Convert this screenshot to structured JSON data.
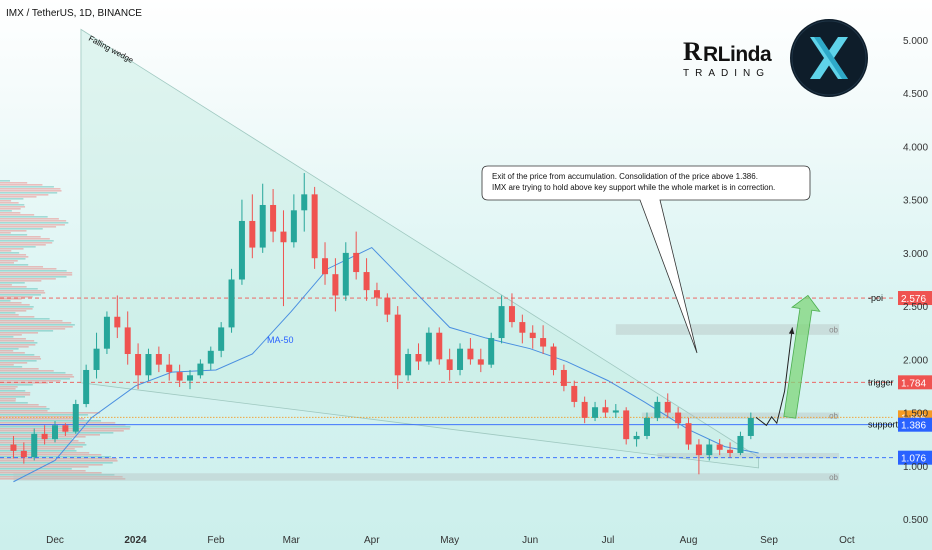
{
  "header": {
    "title": "IMX / TetherUS, 1D, BINANCE"
  },
  "brand": {
    "logo_text": "RLinda",
    "logo_subtext": "TRADING",
    "token_icon": "imx-x-logo-icon"
  },
  "colors": {
    "up": "#26a69a",
    "down": "#ef5350",
    "poi": "#ef5350",
    "trigger": "#ef5350",
    "current": "#f59a23",
    "support": "#2962ff",
    "low": "#2962ff",
    "ma": "#4a8fe0",
    "arrow": "#7fd67a"
  },
  "annotation": {
    "line1": "Exit of the price from accumulation. Consolidation of the price above 1.386.",
    "line2": "IMX are trying to hold above key support while the whole market is in correction."
  },
  "chart_data": {
    "type": "candlestick",
    "ylim": [
      0.45,
      5.15
    ],
    "y_ticks": [
      {
        "value": 5.0,
        "label": "5.000"
      },
      {
        "value": 4.5,
        "label": "4.500"
      },
      {
        "value": 4.0,
        "label": "4.000"
      },
      {
        "value": 3.5,
        "label": "3.500"
      },
      {
        "value": 3.0,
        "label": "3.000"
      },
      {
        "value": 2.5,
        "label": "2.500"
      },
      {
        "value": 2.0,
        "label": "2.000"
      },
      {
        "value": 1.5,
        "label": "1.500"
      },
      {
        "value": 1.0,
        "label": "1.000"
      },
      {
        "value": 0.5,
        "label": "0.500"
      }
    ],
    "x_ticks": [
      {
        "date": "2023-12-01",
        "label": "Dec",
        "bold": false
      },
      {
        "date": "2024-01-01",
        "label": "2024",
        "bold": true
      },
      {
        "date": "2024-02-01",
        "label": "Feb",
        "bold": false
      },
      {
        "date": "2024-03-01",
        "label": "Mar",
        "bold": false
      },
      {
        "date": "2024-04-01",
        "label": "Apr",
        "bold": false
      },
      {
        "date": "2024-05-01",
        "label": "May",
        "bold": false
      },
      {
        "date": "2024-06-01",
        "label": "Jun",
        "bold": false
      },
      {
        "date": "2024-07-01",
        "label": "Jul",
        "bold": false
      },
      {
        "date": "2024-08-01",
        "label": "Aug",
        "bold": false
      },
      {
        "date": "2024-09-01",
        "label": "Sep",
        "bold": false
      },
      {
        "date": "2024-10-01",
        "label": "Oct",
        "bold": false
      }
    ],
    "price_levels": [
      {
        "name": "poi",
        "value": 2.576,
        "label": "2.576",
        "side_label": "-poi",
        "color": "#ef5350",
        "style": "dashed"
      },
      {
        "name": "trigger",
        "value": 1.784,
        "label": "1.784",
        "side_label": "trigger",
        "color": "#ef5350",
        "style": "dashed"
      },
      {
        "name": "current",
        "value": 1.455,
        "label": "1.455",
        "side_label": "",
        "color": "#f59a23",
        "style": "dotted"
      },
      {
        "name": "support",
        "value": 1.386,
        "label": "1.386",
        "side_label": "support",
        "color": "#2962ff",
        "style": "solid"
      },
      {
        "name": "low",
        "value": 1.076,
        "label": "1.076",
        "side_label": "",
        "color": "#2962ff",
        "style": "dashed"
      }
    ],
    "zones": [
      {
        "name": "ob-upper",
        "start": "2024-07-04",
        "end": "2024-09-28",
        "low": 2.23,
        "high": 2.33,
        "label": "ob"
      },
      {
        "name": "ob-middle",
        "start": "2024-07-14",
        "end": "2024-09-28",
        "low": 1.44,
        "high": 1.5,
        "label": "ob"
      },
      {
        "name": "ob-lower-band",
        "start": "2024-07-20",
        "end": "2024-09-28",
        "low": 1.07,
        "high": 1.12,
        "label": ""
      },
      {
        "name": "ob-bottom",
        "start": "2023-11-15",
        "end": "2024-09-28",
        "low": 0.86,
        "high": 0.93,
        "label": "ob"
      }
    ],
    "wedge": {
      "label": "Falling wedge",
      "points": [
        {
          "date": "2023-12-11",
          "value": 5.1
        },
        {
          "date": "2024-08-28",
          "value": 1.08
        },
        {
          "date": "2024-08-28",
          "value": 0.98
        },
        {
          "date": "2023-12-11",
          "value": 1.78
        }
      ]
    },
    "ma": {
      "label": "MA-50",
      "x": [
        "2023-11-15",
        "2023-12-01",
        "2023-12-15",
        "2024-01-01",
        "2024-01-15",
        "2024-02-01",
        "2024-02-15",
        "2024-03-01",
        "2024-03-15",
        "2024-04-01",
        "2024-04-15",
        "2024-05-01",
        "2024-05-15",
        "2024-06-01",
        "2024-06-15",
        "2024-07-01",
        "2024-07-15",
        "2024-08-01",
        "2024-08-15",
        "2024-08-28"
      ],
      "y": [
        0.85,
        1.05,
        1.45,
        1.75,
        1.88,
        1.9,
        2.05,
        2.45,
        2.85,
        3.05,
        2.7,
        2.3,
        2.2,
        2.1,
        1.98,
        1.8,
        1.6,
        1.34,
        1.18,
        1.12
      ]
    },
    "projection": {
      "x": [
        "2024-08-27",
        "2024-08-31",
        "2024-09-02",
        "2024-09-04",
        "2024-09-07",
        "2024-09-10"
      ],
      "y": [
        1.455,
        1.38,
        1.46,
        1.4,
        1.7,
        2.3
      ]
    },
    "arrow_target": {
      "start_date": "2024-09-09",
      "start_value": 1.455,
      "end_date": "2024-09-16",
      "end_value": 2.6
    },
    "series": [
      {
        "date": "2023-11-15",
        "open": 1.2,
        "high": 1.28,
        "low": 1.07,
        "close": 1.14
      },
      {
        "date": "2023-11-19",
        "open": 1.14,
        "high": 1.22,
        "low": 1.02,
        "close": 1.08
      },
      {
        "date": "2023-11-23",
        "open": 1.08,
        "high": 1.35,
        "low": 1.05,
        "close": 1.3
      },
      {
        "date": "2023-11-27",
        "open": 1.3,
        "high": 1.38,
        "low": 1.2,
        "close": 1.25
      },
      {
        "date": "2023-12-01",
        "open": 1.25,
        "high": 1.42,
        "low": 1.22,
        "close": 1.38
      },
      {
        "date": "2023-12-05",
        "open": 1.38,
        "high": 1.4,
        "low": 1.28,
        "close": 1.32
      },
      {
        "date": "2023-12-09",
        "open": 1.32,
        "high": 1.62,
        "low": 1.3,
        "close": 1.58
      },
      {
        "date": "2023-12-13",
        "open": 1.58,
        "high": 1.95,
        "low": 1.55,
        "close": 1.9
      },
      {
        "date": "2023-12-17",
        "open": 1.9,
        "high": 2.25,
        "low": 1.82,
        "close": 2.1
      },
      {
        "date": "2023-12-21",
        "open": 2.1,
        "high": 2.45,
        "low": 2.05,
        "close": 2.4
      },
      {
        "date": "2023-12-25",
        "open": 2.4,
        "high": 2.6,
        "low": 2.2,
        "close": 2.3
      },
      {
        "date": "2023-12-29",
        "open": 2.3,
        "high": 2.45,
        "low": 1.95,
        "close": 2.05
      },
      {
        "date": "2024-01-02",
        "open": 2.05,
        "high": 2.15,
        "low": 1.72,
        "close": 1.85
      },
      {
        "date": "2024-01-06",
        "open": 1.85,
        "high": 2.1,
        "low": 1.8,
        "close": 2.05
      },
      {
        "date": "2024-01-10",
        "open": 2.05,
        "high": 2.12,
        "low": 1.88,
        "close": 1.95
      },
      {
        "date": "2024-01-14",
        "open": 1.95,
        "high": 2.05,
        "low": 1.8,
        "close": 1.88
      },
      {
        "date": "2024-01-18",
        "open": 1.88,
        "high": 1.95,
        "low": 1.74,
        "close": 1.8
      },
      {
        "date": "2024-01-22",
        "open": 1.8,
        "high": 1.9,
        "low": 1.72,
        "close": 1.85
      },
      {
        "date": "2024-01-26",
        "open": 1.85,
        "high": 2.0,
        "low": 1.82,
        "close": 1.96
      },
      {
        "date": "2024-01-30",
        "open": 1.96,
        "high": 2.12,
        "low": 1.9,
        "close": 2.08
      },
      {
        "date": "2024-02-03",
        "open": 2.08,
        "high": 2.35,
        "low": 2.02,
        "close": 2.3
      },
      {
        "date": "2024-02-07",
        "open": 2.3,
        "high": 2.85,
        "low": 2.25,
        "close": 2.75
      },
      {
        "date": "2024-02-11",
        "open": 2.75,
        "high": 3.5,
        "low": 2.7,
        "close": 3.3
      },
      {
        "date": "2024-02-15",
        "open": 3.3,
        "high": 3.55,
        "low": 2.95,
        "close": 3.05
      },
      {
        "date": "2024-02-19",
        "open": 3.05,
        "high": 3.65,
        "low": 3.0,
        "close": 3.45
      },
      {
        "date": "2024-02-23",
        "open": 3.45,
        "high": 3.6,
        "low": 3.1,
        "close": 3.2
      },
      {
        "date": "2024-02-27",
        "open": 3.2,
        "high": 3.4,
        "low": 2.5,
        "close": 3.1
      },
      {
        "date": "2024-03-02",
        "open": 3.1,
        "high": 3.55,
        "low": 3.05,
        "close": 3.4
      },
      {
        "date": "2024-03-06",
        "open": 3.4,
        "high": 3.75,
        "low": 3.2,
        "close": 3.55
      },
      {
        "date": "2024-03-10",
        "open": 3.55,
        "high": 3.62,
        "low": 2.85,
        "close": 2.95
      },
      {
        "date": "2024-03-14",
        "open": 2.95,
        "high": 3.1,
        "low": 2.7,
        "close": 2.8
      },
      {
        "date": "2024-03-18",
        "open": 2.8,
        "high": 2.95,
        "low": 2.45,
        "close": 2.6
      },
      {
        "date": "2024-03-22",
        "open": 2.6,
        "high": 3.1,
        "low": 2.55,
        "close": 3.0
      },
      {
        "date": "2024-03-26",
        "open": 3.0,
        "high": 3.2,
        "low": 2.75,
        "close": 2.82
      },
      {
        "date": "2024-03-30",
        "open": 2.82,
        "high": 2.95,
        "low": 2.55,
        "close": 2.65
      },
      {
        "date": "2024-04-03",
        "open": 2.65,
        "high": 2.72,
        "low": 2.5,
        "close": 2.58
      },
      {
        "date": "2024-04-07",
        "open": 2.58,
        "high": 2.62,
        "low": 2.35,
        "close": 2.42
      },
      {
        "date": "2024-04-11",
        "open": 2.42,
        "high": 2.5,
        "low": 1.72,
        "close": 1.85
      },
      {
        "date": "2024-04-15",
        "open": 1.85,
        "high": 2.1,
        "low": 1.8,
        "close": 2.05
      },
      {
        "date": "2024-04-19",
        "open": 2.05,
        "high": 2.15,
        "low": 1.9,
        "close": 1.98
      },
      {
        "date": "2024-04-23",
        "open": 1.98,
        "high": 2.3,
        "low": 1.95,
        "close": 2.25
      },
      {
        "date": "2024-04-27",
        "open": 2.25,
        "high": 2.3,
        "low": 1.95,
        "close": 2.0
      },
      {
        "date": "2024-05-01",
        "open": 2.0,
        "high": 2.1,
        "low": 1.8,
        "close": 1.9
      },
      {
        "date": "2024-05-05",
        "open": 1.9,
        "high": 2.15,
        "low": 1.85,
        "close": 2.1
      },
      {
        "date": "2024-05-09",
        "open": 2.1,
        "high": 2.2,
        "low": 1.95,
        "close": 2.0
      },
      {
        "date": "2024-05-13",
        "open": 2.0,
        "high": 2.1,
        "low": 1.88,
        "close": 1.95
      },
      {
        "date": "2024-05-17",
        "open": 1.95,
        "high": 2.25,
        "low": 1.92,
        "close": 2.2
      },
      {
        "date": "2024-05-21",
        "open": 2.2,
        "high": 2.6,
        "low": 2.15,
        "close": 2.5
      },
      {
        "date": "2024-05-25",
        "open": 2.5,
        "high": 2.62,
        "low": 2.3,
        "close": 2.35
      },
      {
        "date": "2024-05-29",
        "open": 2.35,
        "high": 2.42,
        "low": 2.15,
        "close": 2.25
      },
      {
        "date": "2024-06-02",
        "open": 2.25,
        "high": 2.32,
        "low": 2.1,
        "close": 2.2
      },
      {
        "date": "2024-06-06",
        "open": 2.2,
        "high": 2.32,
        "low": 2.05,
        "close": 2.12
      },
      {
        "date": "2024-06-10",
        "open": 2.12,
        "high": 2.15,
        "low": 1.85,
        "close": 1.9
      },
      {
        "date": "2024-06-14",
        "open": 1.9,
        "high": 1.95,
        "low": 1.7,
        "close": 1.75
      },
      {
        "date": "2024-06-18",
        "open": 1.75,
        "high": 1.8,
        "low": 1.55,
        "close": 1.6
      },
      {
        "date": "2024-06-22",
        "open": 1.6,
        "high": 1.65,
        "low": 1.4,
        "close": 1.45
      },
      {
        "date": "2024-06-26",
        "open": 1.45,
        "high": 1.6,
        "low": 1.42,
        "close": 1.55
      },
      {
        "date": "2024-06-30",
        "open": 1.55,
        "high": 1.62,
        "low": 1.45,
        "close": 1.5
      },
      {
        "date": "2024-07-04",
        "open": 1.5,
        "high": 1.58,
        "low": 1.45,
        "close": 1.52
      },
      {
        "date": "2024-07-08",
        "open": 1.52,
        "high": 1.55,
        "low": 1.2,
        "close": 1.25
      },
      {
        "date": "2024-07-12",
        "open": 1.25,
        "high": 1.32,
        "low": 1.18,
        "close": 1.28
      },
      {
        "date": "2024-07-16",
        "open": 1.28,
        "high": 1.5,
        "low": 1.25,
        "close": 1.45
      },
      {
        "date": "2024-07-20",
        "open": 1.45,
        "high": 1.65,
        "low": 1.42,
        "close": 1.6
      },
      {
        "date": "2024-07-24",
        "open": 1.6,
        "high": 1.68,
        "low": 1.45,
        "close": 1.5
      },
      {
        "date": "2024-07-28",
        "open": 1.5,
        "high": 1.55,
        "low": 1.35,
        "close": 1.4
      },
      {
        "date": "2024-08-01",
        "open": 1.4,
        "high": 1.45,
        "low": 1.15,
        "close": 1.2
      },
      {
        "date": "2024-08-05",
        "open": 1.2,
        "high": 1.25,
        "low": 0.92,
        "close": 1.1
      },
      {
        "date": "2024-08-09",
        "open": 1.1,
        "high": 1.25,
        "low": 1.05,
        "close": 1.2
      },
      {
        "date": "2024-08-13",
        "open": 1.2,
        "high": 1.25,
        "low": 1.1,
        "close": 1.15
      },
      {
        "date": "2024-08-17",
        "open": 1.15,
        "high": 1.22,
        "low": 1.08,
        "close": 1.12
      },
      {
        "date": "2024-08-21",
        "open": 1.12,
        "high": 1.32,
        "low": 1.1,
        "close": 1.28
      },
      {
        "date": "2024-08-25",
        "open": 1.28,
        "high": 1.5,
        "low": 1.25,
        "close": 1.45
      }
    ]
  }
}
